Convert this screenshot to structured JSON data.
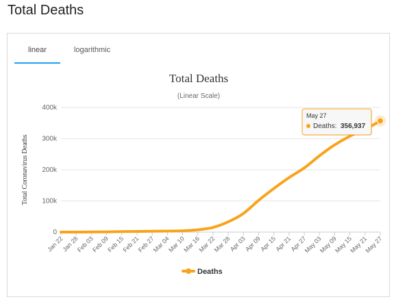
{
  "page": {
    "title": "Total Deaths"
  },
  "tabs": [
    {
      "label": "linear",
      "active": true
    },
    {
      "label": "logarithmic",
      "active": false
    }
  ],
  "colors": {
    "series": "#f8a31b",
    "tab_underline": "#1da1f2",
    "grid": "#e6e6e6"
  },
  "chart_data": {
    "type": "line",
    "title": "Total Deaths",
    "subtitle": "(Linear Scale)",
    "ylabel": "Total Coronavirus Deaths",
    "xlabel": "",
    "ylim": [
      0,
      400000
    ],
    "y_ticks": [
      "0",
      "100k",
      "200k",
      "300k",
      "400k"
    ],
    "y_tick_values": [
      0,
      100000,
      200000,
      300000,
      400000
    ],
    "x_ticks": [
      "Jan 22",
      "Jan 28",
      "Feb 03",
      "Feb 09",
      "Feb 15",
      "Feb 21",
      "Feb 27",
      "Mar 04",
      "Mar 10",
      "Mar 16",
      "Mar 22",
      "Mar 28",
      "Apr 03",
      "Apr 09",
      "Apr 15",
      "Apr 21",
      "Apr 27",
      "May 03",
      "May 09",
      "May 15",
      "May 21",
      "May 27"
    ],
    "grid": true,
    "legend": {
      "position": "bottom-center"
    },
    "series": [
      {
        "name": "Deaths",
        "x": [
          "Jan 22",
          "Jan 28",
          "Feb 03",
          "Feb 09",
          "Feb 15",
          "Feb 21",
          "Feb 27",
          "Mar 04",
          "Mar 10",
          "Mar 16",
          "Mar 22",
          "Mar 28",
          "Apr 03",
          "Apr 09",
          "Apr 15",
          "Apr 21",
          "Apr 27",
          "May 03",
          "May 09",
          "May 15",
          "May 21",
          "May 27"
        ],
        "values": [
          17,
          132,
          425,
          910,
          1520,
          2250,
          2860,
          3250,
          4260,
          7500,
          15000,
          33000,
          60000,
          102000,
          140000,
          175000,
          206000,
          245000,
          280000,
          308000,
          330000,
          356937
        ]
      }
    ],
    "tooltip": {
      "date": "May 27",
      "series": "Deaths",
      "label": "Deaths:",
      "value": "356,937"
    }
  }
}
